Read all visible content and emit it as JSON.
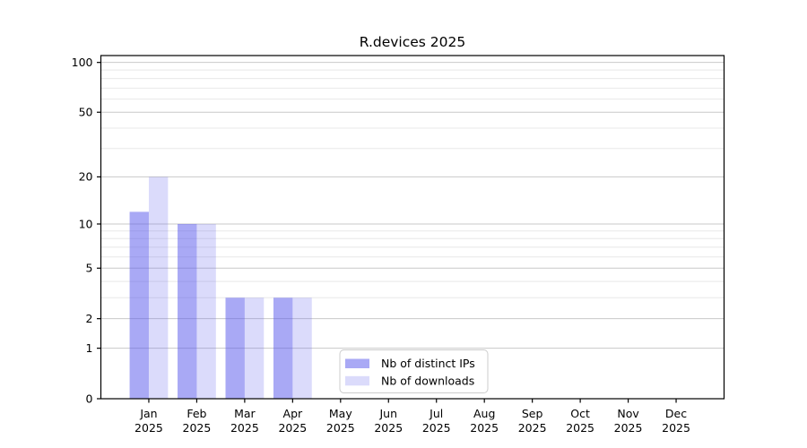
{
  "figure": {
    "background": "#ffffff"
  },
  "chart_data": {
    "type": "bar",
    "title": "R.devices 2025",
    "categories": [
      "Jan",
      "Feb",
      "Mar",
      "Apr",
      "May",
      "Jun",
      "Jul",
      "Aug",
      "Sep",
      "Oct",
      "Nov",
      "Dec"
    ],
    "year_suffix": "2025",
    "series": [
      {
        "name": "Nb of distinct IPs",
        "color": "#5a5aeb",
        "alpha": 0.52,
        "values": [
          12,
          10,
          3,
          3,
          0,
          0,
          0,
          0,
          0,
          0,
          0,
          0
        ]
      },
      {
        "name": "Nb of downloads",
        "color": "#5a5aeb",
        "alpha": 0.22,
        "values": [
          20,
          10,
          3,
          3,
          0,
          0,
          0,
          0,
          0,
          0,
          0,
          0
        ]
      }
    ],
    "yscale": "log1p",
    "ylim": [
      0,
      110
    ],
    "y_major_ticks": [
      0,
      1,
      2,
      5,
      10,
      20,
      50,
      100
    ],
    "y_minor_ticks": [
      3,
      4,
      6,
      7,
      8,
      9,
      30,
      40,
      60,
      70,
      80,
      90
    ],
    "grid": true,
    "bar_group_width_fraction": 0.8,
    "legend": {
      "position": "lower-center-left",
      "border_color": "#cccccc",
      "background": "#ffffff"
    },
    "colors": {
      "major_grid": "#c9c9c9",
      "minor_grid": "#e8e8e8",
      "axis": "#000000",
      "text": "#000000"
    }
  }
}
